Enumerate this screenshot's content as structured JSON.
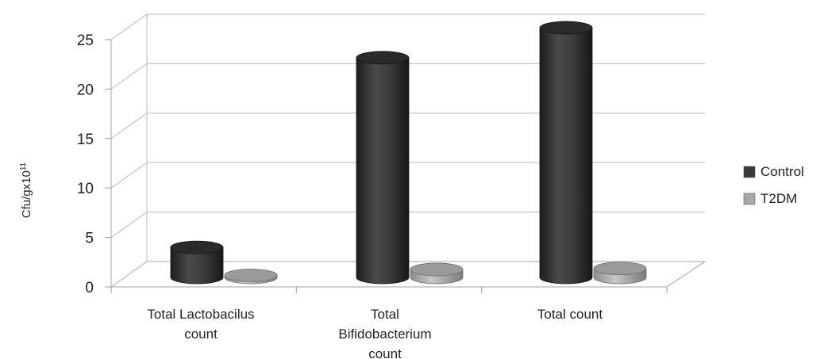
{
  "chart_data": {
    "type": "bar",
    "categories": [
      [
        "Total Lactobacilus",
        "count"
      ],
      [
        "Total",
        "Bifidobacterium",
        "count"
      ],
      [
        "Total count"
      ]
    ],
    "series": [
      {
        "name": "Control",
        "values": [
          3,
          22,
          25
        ],
        "color": "#3a3a3a"
      },
      {
        "name": "T2DM",
        "values": [
          0.2,
          0.8,
          0.9
        ],
        "color": "#a8a8a8"
      }
    ],
    "ylabel": "Cfu/gx10",
    "ylabel_sup": "11",
    "yticks": [
      "0",
      "5",
      "10",
      "15",
      "20",
      "25"
    ],
    "ylim": [
      0,
      25
    ],
    "grid": true,
    "style": "3d-cylinder",
    "legend_position": "right"
  }
}
